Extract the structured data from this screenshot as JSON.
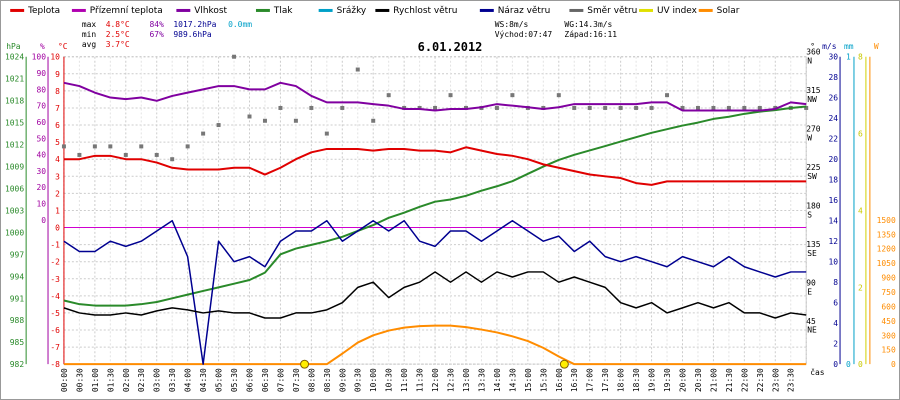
{
  "chart_data": {
    "type": "line",
    "title": "6.01.2012",
    "legend": [
      {
        "label": "Teplota",
        "color": "#e00000"
      },
      {
        "label": "Přízemní teplota",
        "color": "#b000b0"
      },
      {
        "label": "Vlhkost",
        "color": "#8000a0"
      },
      {
        "label": "Tlak",
        "color": "#2a8a2a"
      },
      {
        "label": "Srážky",
        "color": "#00a0c8"
      },
      {
        "label": "Rychlost větru",
        "color": "#000000"
      },
      {
        "label": "Náraz větru",
        "color": "#000090"
      },
      {
        "label": "Směr větru",
        "color": "#666666"
      },
      {
        "label": "UV index",
        "color": "#e0e000"
      },
      {
        "label": "Solar",
        "color": "#ff8c00"
      }
    ],
    "stats": {
      "max_label": "max",
      "max_temp": "4.8°C",
      "max_hum": "84%",
      "max_press": "1017.2hPa",
      "max_rain": "0.0mm",
      "min_label": "min",
      "min_temp": "2.5°C",
      "min_hum": "67%",
      "min_press": "989.6hPa",
      "avg_label": "avg",
      "avg_temp": "3.7°C"
    },
    "wind_info": {
      "ws": "WS:8m/s",
      "wg": "WG:14.3m/s",
      "sunrise": "Východ:07:47",
      "sunset": "Západ:16:11"
    },
    "axes": {
      "hpa": {
        "unit": "hPa",
        "ticks": [
          "1024",
          "1021",
          "1018",
          "1015",
          "1012",
          "1009",
          "1006",
          "1003",
          "1000",
          "997",
          "994",
          "991",
          "988",
          "985",
          "982"
        ]
      },
      "hum": {
        "unit": "%",
        "ticks": [
          "100",
          "90",
          "80",
          "70",
          "60",
          "50",
          "40",
          "30",
          "20",
          "10",
          "0"
        ]
      },
      "temp": {
        "unit": "°C",
        "ticks": [
          "10",
          "9",
          "8",
          "7",
          "6",
          "5",
          "4",
          "3",
          "2",
          "1",
          "0",
          "-1",
          "-2",
          "-3",
          "-4",
          "-5",
          "-6",
          "-7",
          "-8"
        ]
      },
      "dir": {
        "unit": "°",
        "ticks": [
          {
            "deg": "360",
            "name": "N"
          },
          {
            "deg": "315",
            "name": "NW"
          },
          {
            "deg": "270",
            "name": "W"
          },
          {
            "deg": "225",
            "name": "SW"
          },
          {
            "deg": "180",
            "name": "S"
          },
          {
            "deg": "135",
            "name": "SE"
          },
          {
            "deg": "90",
            "name": "E"
          },
          {
            "deg": "45",
            "name": "NE"
          }
        ]
      },
      "speed": {
        "unit": "m/s",
        "ticks": [
          "30",
          "28",
          "26",
          "24",
          "22",
          "20",
          "18",
          "16",
          "14",
          "12",
          "10",
          "8",
          "6",
          "4",
          "2",
          "0"
        ]
      },
      "rain": {
        "unit": "mm",
        "ticks": [
          "1",
          "0"
        ]
      },
      "uv": {
        "ticks": [
          "8",
          "6",
          "4",
          "2",
          "0"
        ]
      },
      "solar": {
        "unit": "W",
        "ticks": [
          "1500",
          "1350",
          "1200",
          "1050",
          "900",
          "750",
          "600",
          "450",
          "300",
          "150",
          "0"
        ]
      },
      "x_label": "čas",
      "x_ticks": [
        "00:00",
        "00:30",
        "01:00",
        "01:30",
        "02:00",
        "02:30",
        "03:00",
        "03:30",
        "04:00",
        "04:30",
        "05:00",
        "05:30",
        "06:00",
        "06:30",
        "07:00",
        "07:30",
        "08:00",
        "08:30",
        "09:00",
        "09:30",
        "10:00",
        "10:30",
        "11:00",
        "11:30",
        "12:00",
        "12:30",
        "13:00",
        "13:30",
        "14:00",
        "14:30",
        "15:00",
        "15:30",
        "16:00",
        "16:30",
        "17:00",
        "17:30",
        "18:00",
        "18:30",
        "19:00",
        "19:30",
        "20:00",
        "20:30",
        "21:00",
        "21:30",
        "22:00",
        "22:30",
        "23:00",
        "23:30"
      ]
    },
    "x_hours": [
      0,
      0.5,
      1,
      1.5,
      2,
      2.5,
      3,
      3.5,
      4,
      4.5,
      5,
      5.5,
      6,
      6.5,
      7,
      7.5,
      8,
      8.5,
      9,
      9.5,
      10,
      10.5,
      11,
      11.5,
      12,
      12.5,
      13,
      13.5,
      14,
      14.5,
      15,
      15.5,
      16,
      16.5,
      17,
      17.5,
      18,
      18.5,
      19,
      19.5,
      20,
      20.5,
      21,
      21.5,
      22,
      22.5,
      23,
      23.5,
      24
    ],
    "series": [
      {
        "name": "Teplota",
        "unit": "°C",
        "values": [
          4.0,
          4.0,
          4.2,
          4.2,
          4.0,
          4.0,
          3.8,
          3.5,
          3.4,
          3.4,
          3.4,
          3.5,
          3.5,
          3.1,
          3.5,
          4.0,
          4.4,
          4.6,
          4.6,
          4.6,
          4.5,
          4.6,
          4.6,
          4.5,
          4.5,
          4.4,
          4.7,
          4.5,
          4.3,
          4.2,
          4.0,
          3.7,
          3.5,
          3.3,
          3.1,
          3.0,
          2.9,
          2.6,
          2.5,
          2.7,
          2.7,
          2.7,
          2.7,
          2.7,
          2.7,
          2.7,
          2.7,
          2.7,
          2.7
        ]
      },
      {
        "name": "Vlhkost",
        "unit": "%",
        "values": [
          84,
          82,
          78,
          75,
          74,
          75,
          73,
          76,
          78,
          80,
          82,
          82,
          80,
          80,
          84,
          82,
          76,
          72,
          72,
          72,
          71,
          70,
          68,
          68,
          67,
          68,
          68,
          69,
          71,
          70,
          69,
          68,
          69,
          71,
          71,
          71,
          71,
          71,
          72,
          72,
          67,
          67,
          67,
          67,
          67,
          67,
          68,
          72,
          71
        ]
      },
      {
        "name": "Tlak",
        "unit": "hPa",
        "values": [
          990.7,
          990.2,
          990.0,
          990.0,
          990.0,
          990.2,
          990.5,
          991.0,
          991.5,
          992.0,
          992.5,
          993.0,
          993.5,
          994.5,
          997.0,
          997.8,
          998.3,
          998.8,
          999.4,
          1000.2,
          1001.0,
          1002.0,
          1002.7,
          1003.5,
          1004.2,
          1004.5,
          1005.0,
          1005.7,
          1006.3,
          1007.0,
          1008.0,
          1009.0,
          1009.9,
          1010.6,
          1011.2,
          1011.8,
          1012.4,
          1013.0,
          1013.6,
          1014.1,
          1014.6,
          1015.0,
          1015.5,
          1015.8,
          1016.2,
          1016.5,
          1016.7,
          1017.0,
          1017.2
        ]
      },
      {
        "name": "Rychlost větru",
        "unit": "m/s",
        "values": [
          5.5,
          5.0,
          4.8,
          4.8,
          5.0,
          4.8,
          5.2,
          5.5,
          5.3,
          5.0,
          5.2,
          5.0,
          5.0,
          4.5,
          4.5,
          5.0,
          5.0,
          5.3,
          6.0,
          7.5,
          8.0,
          6.5,
          7.5,
          8.0,
          9.0,
          8.0,
          9.0,
          8.0,
          9.0,
          8.5,
          9.0,
          9.0,
          8.0,
          8.5,
          8.0,
          7.5,
          6.0,
          5.5,
          6.0,
          5.0,
          5.5,
          6.0,
          5.5,
          6.0,
          5.0,
          5.0,
          4.5,
          5.0,
          4.8
        ]
      },
      {
        "name": "Náraz větru",
        "unit": "m/s",
        "values": [
          12.0,
          11.0,
          11.0,
          12.0,
          11.5,
          12.0,
          13.0,
          14.0,
          10.5,
          0.0,
          12.0,
          10.0,
          10.5,
          9.5,
          12.0,
          13.0,
          13.0,
          14.0,
          12.0,
          13.0,
          14.0,
          13.0,
          14.0,
          12.0,
          11.5,
          13.0,
          13.0,
          12.0,
          13.0,
          14.0,
          13.0,
          12.0,
          12.5,
          11.0,
          12.0,
          10.5,
          10.0,
          10.5,
          10.0,
          9.5,
          10.5,
          10.0,
          9.5,
          10.5,
          9.5,
          9.0,
          8.5,
          9.0,
          9.0
        ]
      },
      {
        "name": "Solar",
        "unit": "W",
        "values": [
          0,
          0,
          0,
          0,
          0,
          0,
          0,
          0,
          0,
          0,
          0,
          0,
          0,
          0,
          0,
          0,
          0,
          0,
          110,
          225,
          300,
          350,
          380,
          395,
          400,
          400,
          385,
          360,
          330,
          290,
          240,
          170,
          80,
          0,
          0,
          0,
          0,
          0,
          0,
          0,
          0,
          0,
          0,
          0,
          0,
          0,
          0,
          0,
          0
        ]
      },
      {
        "name": "Směr větru",
        "unit": "°",
        "values": [
          255,
          245,
          255,
          255,
          245,
          255,
          245,
          240,
          255,
          270,
          280,
          360,
          290,
          285,
          300,
          285,
          300,
          270,
          300,
          345,
          285,
          315,
          300,
          300,
          300,
          315,
          300,
          300,
          300,
          315,
          300,
          300,
          315,
          300,
          300,
          300,
          300,
          300,
          300,
          315,
          300,
          300,
          300,
          300,
          300,
          300,
          300,
          300,
          300
        ]
      }
    ],
    "markers": [
      {
        "name": "Východ",
        "hour": 7.78,
        "temp": -8
      },
      {
        "name": "Západ",
        "hour": 16.18,
        "temp": -8
      }
    ]
  }
}
